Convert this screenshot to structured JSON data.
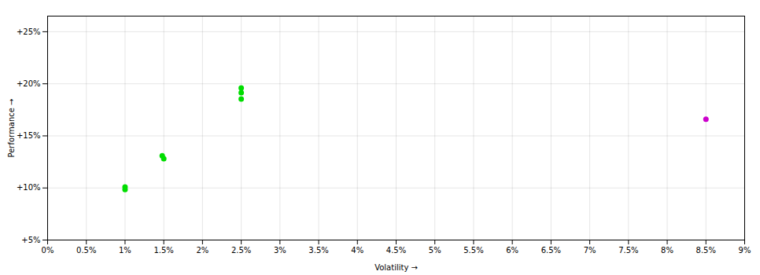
{
  "chart_data": {
    "type": "scatter",
    "xlabel": "Volatility",
    "ylabel": "Performance",
    "xlim": [
      0.0,
      9.0
    ],
    "ylim": [
      5.0,
      26.5
    ],
    "xticks": [
      {
        "value": 0.0,
        "label": "0%"
      },
      {
        "value": 0.5,
        "label": "0.5%"
      },
      {
        "value": 1.0,
        "label": "1%"
      },
      {
        "value": 1.5,
        "label": "1.5%"
      },
      {
        "value": 2.0,
        "label": "2%"
      },
      {
        "value": 2.5,
        "label": "2.5%"
      },
      {
        "value": 3.0,
        "label": "3%"
      },
      {
        "value": 3.5,
        "label": "3.5%"
      },
      {
        "value": 4.0,
        "label": "4%"
      },
      {
        "value": 4.5,
        "label": "4.5%"
      },
      {
        "value": 5.0,
        "label": "5%"
      },
      {
        "value": 5.5,
        "label": "5.5%"
      },
      {
        "value": 6.0,
        "label": "6%"
      },
      {
        "value": 6.5,
        "label": "6.5%"
      },
      {
        "value": 7.0,
        "label": "7%"
      },
      {
        "value": 7.5,
        "label": "7.5%"
      },
      {
        "value": 8.0,
        "label": "8%"
      },
      {
        "value": 8.5,
        "label": "8.5%"
      },
      {
        "value": 9.0,
        "label": "9%"
      }
    ],
    "yticks": [
      {
        "value": 5,
        "label": "+5%"
      },
      {
        "value": 10,
        "label": "+10%"
      },
      {
        "value": 15,
        "label": "+15%"
      },
      {
        "value": 20,
        "label": "+20%"
      },
      {
        "value": 25,
        "label": "+25%"
      }
    ],
    "grid": true,
    "series": [
      {
        "color": "#00dd00",
        "x": [
          1.0,
          1.0,
          1.5,
          1.48,
          2.5,
          2.5,
          2.5
        ],
        "values": [
          10.1,
          9.85,
          12.8,
          13.1,
          19.6,
          19.15,
          18.55
        ]
      },
      {
        "color": "#cc00cc",
        "x": [
          8.5
        ],
        "values": [
          16.6
        ]
      }
    ]
  }
}
